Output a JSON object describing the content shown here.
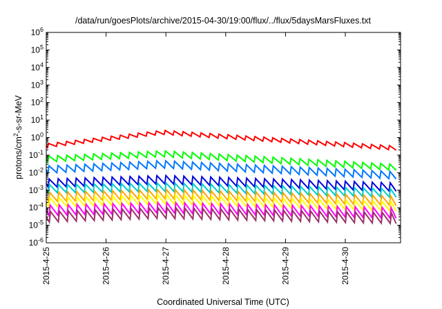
{
  "chart_data": {
    "type": "line",
    "title": "/data/run/goesPlots/archive/2015-04-30/19:00/flux/../flux/5daysMarsFluxes.txt",
    "xlabel": "Coordinated Universal Time (UTC)",
    "ylabel": "protons/cm2-s-sr-MeV",
    "ylabel_parts": {
      "before": "protons/cm",
      "sup": "2",
      "after": "-s-sr-MeV"
    },
    "x_ticks": [
      "2015-4-25",
      "2015-4-26",
      "2015-4-27",
      "2015-4-28",
      "2015-4-29",
      "2015-4-30"
    ],
    "xlim_days": [
      0,
      5.85
    ],
    "y_scale": "log",
    "y_tick_exponents": [
      -6,
      -5,
      -4,
      -3,
      -2,
      -1,
      0,
      1,
      2,
      3,
      4,
      5,
      6
    ],
    "y_tick_base": "10",
    "ylim": [
      1e-06,
      1000000.0
    ],
    "grid": false,
    "series": [
      {
        "color": "#ff0000",
        "start": 0.35,
        "mid": 2.0,
        "end": 0.25,
        "amplitude": 1.7,
        "period_days": 0.15
      },
      {
        "color": "#00ff00",
        "start": 0.06,
        "mid": 0.12,
        "end": 0.02,
        "amplitude": 2.2,
        "period_days": 0.15
      },
      {
        "color": "#0077ff",
        "start": 0.015,
        "mid": 0.03,
        "end": 0.007,
        "amplitude": 2.6,
        "period_days": 0.15
      },
      {
        "color": "#0000dd",
        "start": 0.0025,
        "mid": 0.004,
        "end": 0.0015,
        "amplitude": 3.0,
        "period_days": 0.15
      },
      {
        "color": "#00cccc",
        "start": 0.0012,
        "mid": 0.0015,
        "end": 0.0007,
        "amplitude": 3.0,
        "period_days": 0.15
      },
      {
        "color": "#ffa500",
        "start": 0.0004,
        "mid": 0.0006,
        "end": 0.00025,
        "amplitude": 3.5,
        "period_days": 0.15
      },
      {
        "color": "#ffff00",
        "start": 0.0002,
        "mid": 0.0003,
        "end": 0.00012,
        "amplitude": 3.5,
        "period_days": 0.15
      },
      {
        "color": "#ff00ff",
        "start": 7e-05,
        "mid": 0.0001,
        "end": 5e-05,
        "amplitude": 4.0,
        "period_days": 0.15
      },
      {
        "color": "#993366",
        "start": 3e-05,
        "mid": 5e-05,
        "end": 2.5e-05,
        "amplitude": 4.0,
        "period_days": 0.15
      }
    ]
  }
}
